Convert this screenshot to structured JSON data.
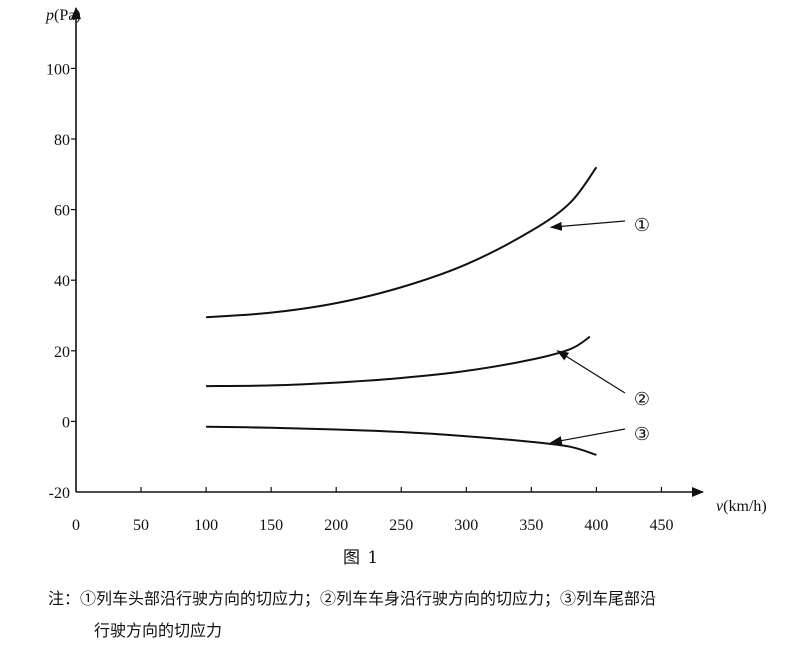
{
  "chart_data": {
    "type": "line",
    "x_axis_label_italic": "v",
    "x_axis_label_rest": "(km/h)",
    "y_axis_label_italic": "p",
    "y_axis_label_rest": "(Pa)",
    "x_ticks": [
      "0",
      "50",
      "100",
      "150",
      "200",
      "250",
      "300",
      "350",
      "400",
      "450"
    ],
    "y_ticks": [
      "-20",
      "0",
      "20",
      "40",
      "60",
      "80",
      "100"
    ],
    "xlim": [
      0,
      470
    ],
    "ylim": [
      -20,
      112
    ],
    "series": [
      {
        "marker": "①",
        "x": [
          100,
          150,
          200,
          250,
          300,
          350,
          380,
          400
        ],
        "y": [
          29.5,
          30.8,
          33.5,
          38.0,
          44.5,
          54.0,
          62.0,
          72.0
        ]
      },
      {
        "marker": "②",
        "x": [
          100,
          150,
          200,
          250,
          300,
          350,
          380,
          395
        ],
        "y": [
          10.0,
          10.2,
          11.0,
          12.3,
          14.3,
          17.5,
          20.5,
          24.0
        ]
      },
      {
        "marker": "③",
        "x": [
          100,
          150,
          200,
          250,
          300,
          350,
          380,
          400
        ],
        "y": [
          -1.5,
          -1.8,
          -2.3,
          -3.0,
          -4.2,
          -5.8,
          -7.2,
          -9.5
        ]
      }
    ],
    "annotations": [
      {
        "text": "①",
        "point_x": 365,
        "point_y": 55.0
      },
      {
        "text": "②",
        "point_x": 370,
        "point_y": 20.0
      },
      {
        "text": "③",
        "point_x": 365,
        "point_y": -6.0
      }
    ]
  },
  "figure_caption": "图 1",
  "note_line1": "注：①列车头部沿行驶方向的切应力；②列车车身沿行驶方向的切应力；③列车尾部沿",
  "note_line2": "行驶方向的切应力"
}
